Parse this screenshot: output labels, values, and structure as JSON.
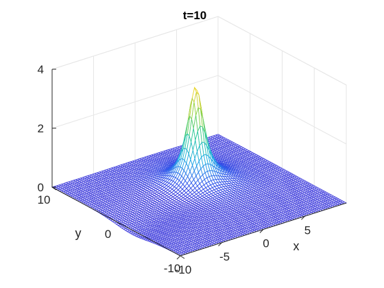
{
  "chart_data": {
    "type": "surface",
    "title": "t=10",
    "xlabel": "x",
    "ylabel": "y",
    "zlabel": "",
    "xlim": [
      -10,
      10
    ],
    "ylim": [
      -10,
      10
    ],
    "zlim": [
      0,
      4
    ],
    "xticks": [
      -10,
      -5,
      0,
      5
    ],
    "yticks": [
      -10,
      0,
      10
    ],
    "zticks": [
      0,
      2,
      4
    ],
    "grid": true,
    "colormap": "turbo-like (blue to yellow)",
    "surface": {
      "description_values": {
        "peak_height": 3.4,
        "peak_x": 1.5,
        "peak_y": 2.5,
        "baseline": 0.0,
        "trough_depth": -0.15
      }
    }
  },
  "colors": {
    "grid": "#e6e6e6",
    "axis": "#262626",
    "surface_low": "#3d3bdc",
    "surface_high": "#f2e02e"
  }
}
